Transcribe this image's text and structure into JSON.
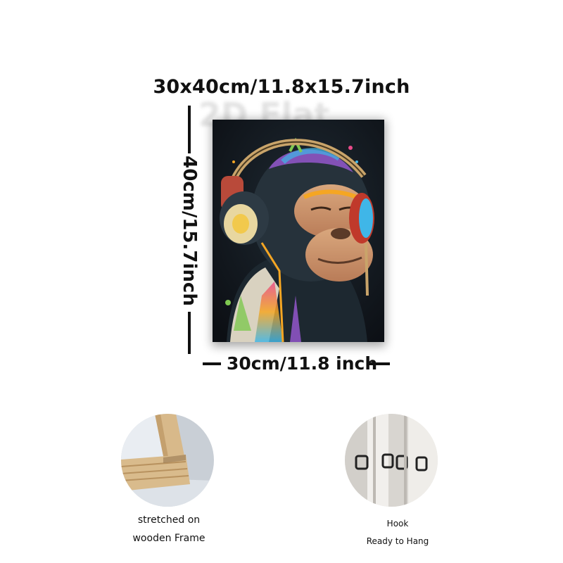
{
  "dimensions": {
    "overall_label": "30x40cm/11.8x15.7inch",
    "height_label": "40cm/15.7inch",
    "width_label": "30cm/11.8 inch"
  },
  "watermark_text": "2D Flat",
  "artwork": {
    "background_color": "#10141a",
    "accent_colors": [
      "#f5a623",
      "#e94b8a",
      "#3fb6e8",
      "#7ec850",
      "#9b59d6"
    ]
  },
  "features": {
    "frame_caption_line1": "stretched on",
    "frame_caption_line2": "wooden Frame",
    "hook_caption_line1": "Hook",
    "hook_caption_line2": "Ready to Hang"
  }
}
